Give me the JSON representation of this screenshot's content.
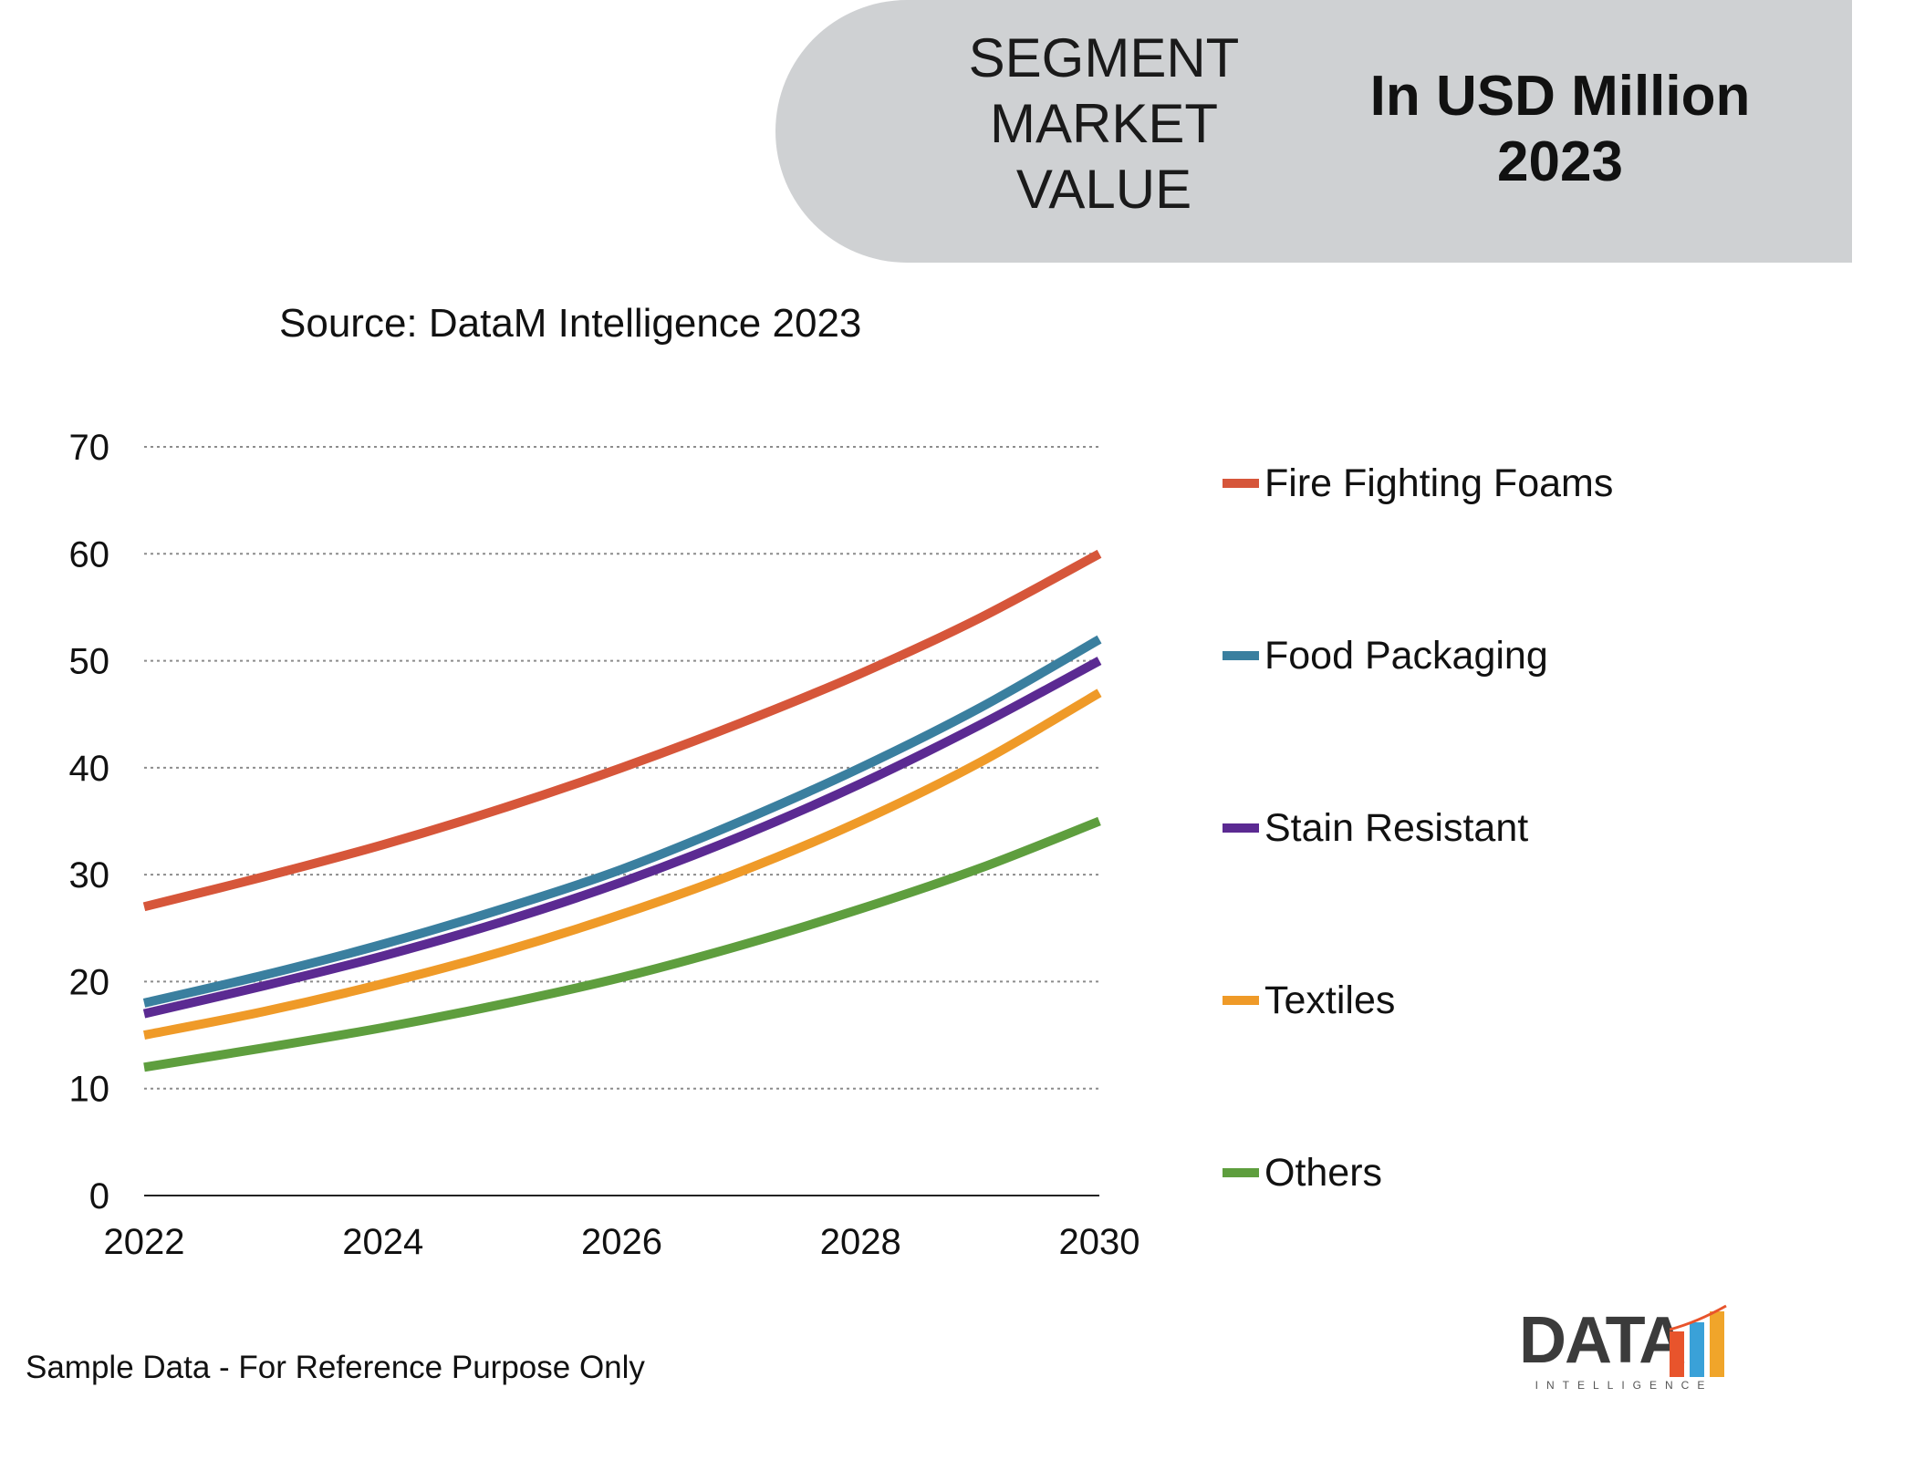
{
  "header": {
    "segment_label": "SEGMENT MARKET VALUE",
    "unit_line1": "In USD Million",
    "unit_line2": "2023"
  },
  "source": "Source: DataM Intelligence 2023",
  "footnote": "Sample Data - For Reference Purpose Only",
  "logo": {
    "text": "DATA",
    "subtext": "INTELLIGENCE"
  },
  "chart_data": {
    "type": "line",
    "title": "",
    "xlabel": "",
    "ylabel": "",
    "x": [
      2022,
      2023,
      2024,
      2025,
      2026,
      2027,
      2028,
      2029,
      2030
    ],
    "x_ticks": [
      2022,
      2024,
      2026,
      2028,
      2030
    ],
    "y_ticks": [
      0,
      10,
      20,
      30,
      40,
      50,
      60,
      70
    ],
    "xlim": [
      2022,
      2030
    ],
    "ylim": [
      0,
      70
    ],
    "grid": "horizontal-dotted",
    "legend_position": "right",
    "series": [
      {
        "name": "Fire Fighting Foams",
        "color": "#d6563a",
        "values": [
          27,
          29.8,
          32.8,
          36.2,
          40,
          44.2,
          48.8,
          54,
          60
        ]
      },
      {
        "name": "Food Packaging",
        "color": "#3a7f9f",
        "values": [
          18,
          20.6,
          23.5,
          26.8,
          30.5,
          35,
          40,
          45.6,
          52
        ]
      },
      {
        "name": "Stain Resistant",
        "color": "#5b2a92",
        "values": [
          17,
          19.6,
          22.4,
          25.6,
          29.3,
          33.6,
          38.5,
          44,
          50
        ]
      },
      {
        "name": "Textiles",
        "color": "#ef9a28",
        "values": [
          15,
          17.2,
          19.8,
          22.8,
          26.3,
          30.3,
          35,
          40.5,
          47
        ]
      },
      {
        "name": "Others",
        "color": "#5e9e3e",
        "values": [
          12,
          13.8,
          15.7,
          17.9,
          20.4,
          23.4,
          26.8,
          30.6,
          35
        ]
      }
    ]
  }
}
